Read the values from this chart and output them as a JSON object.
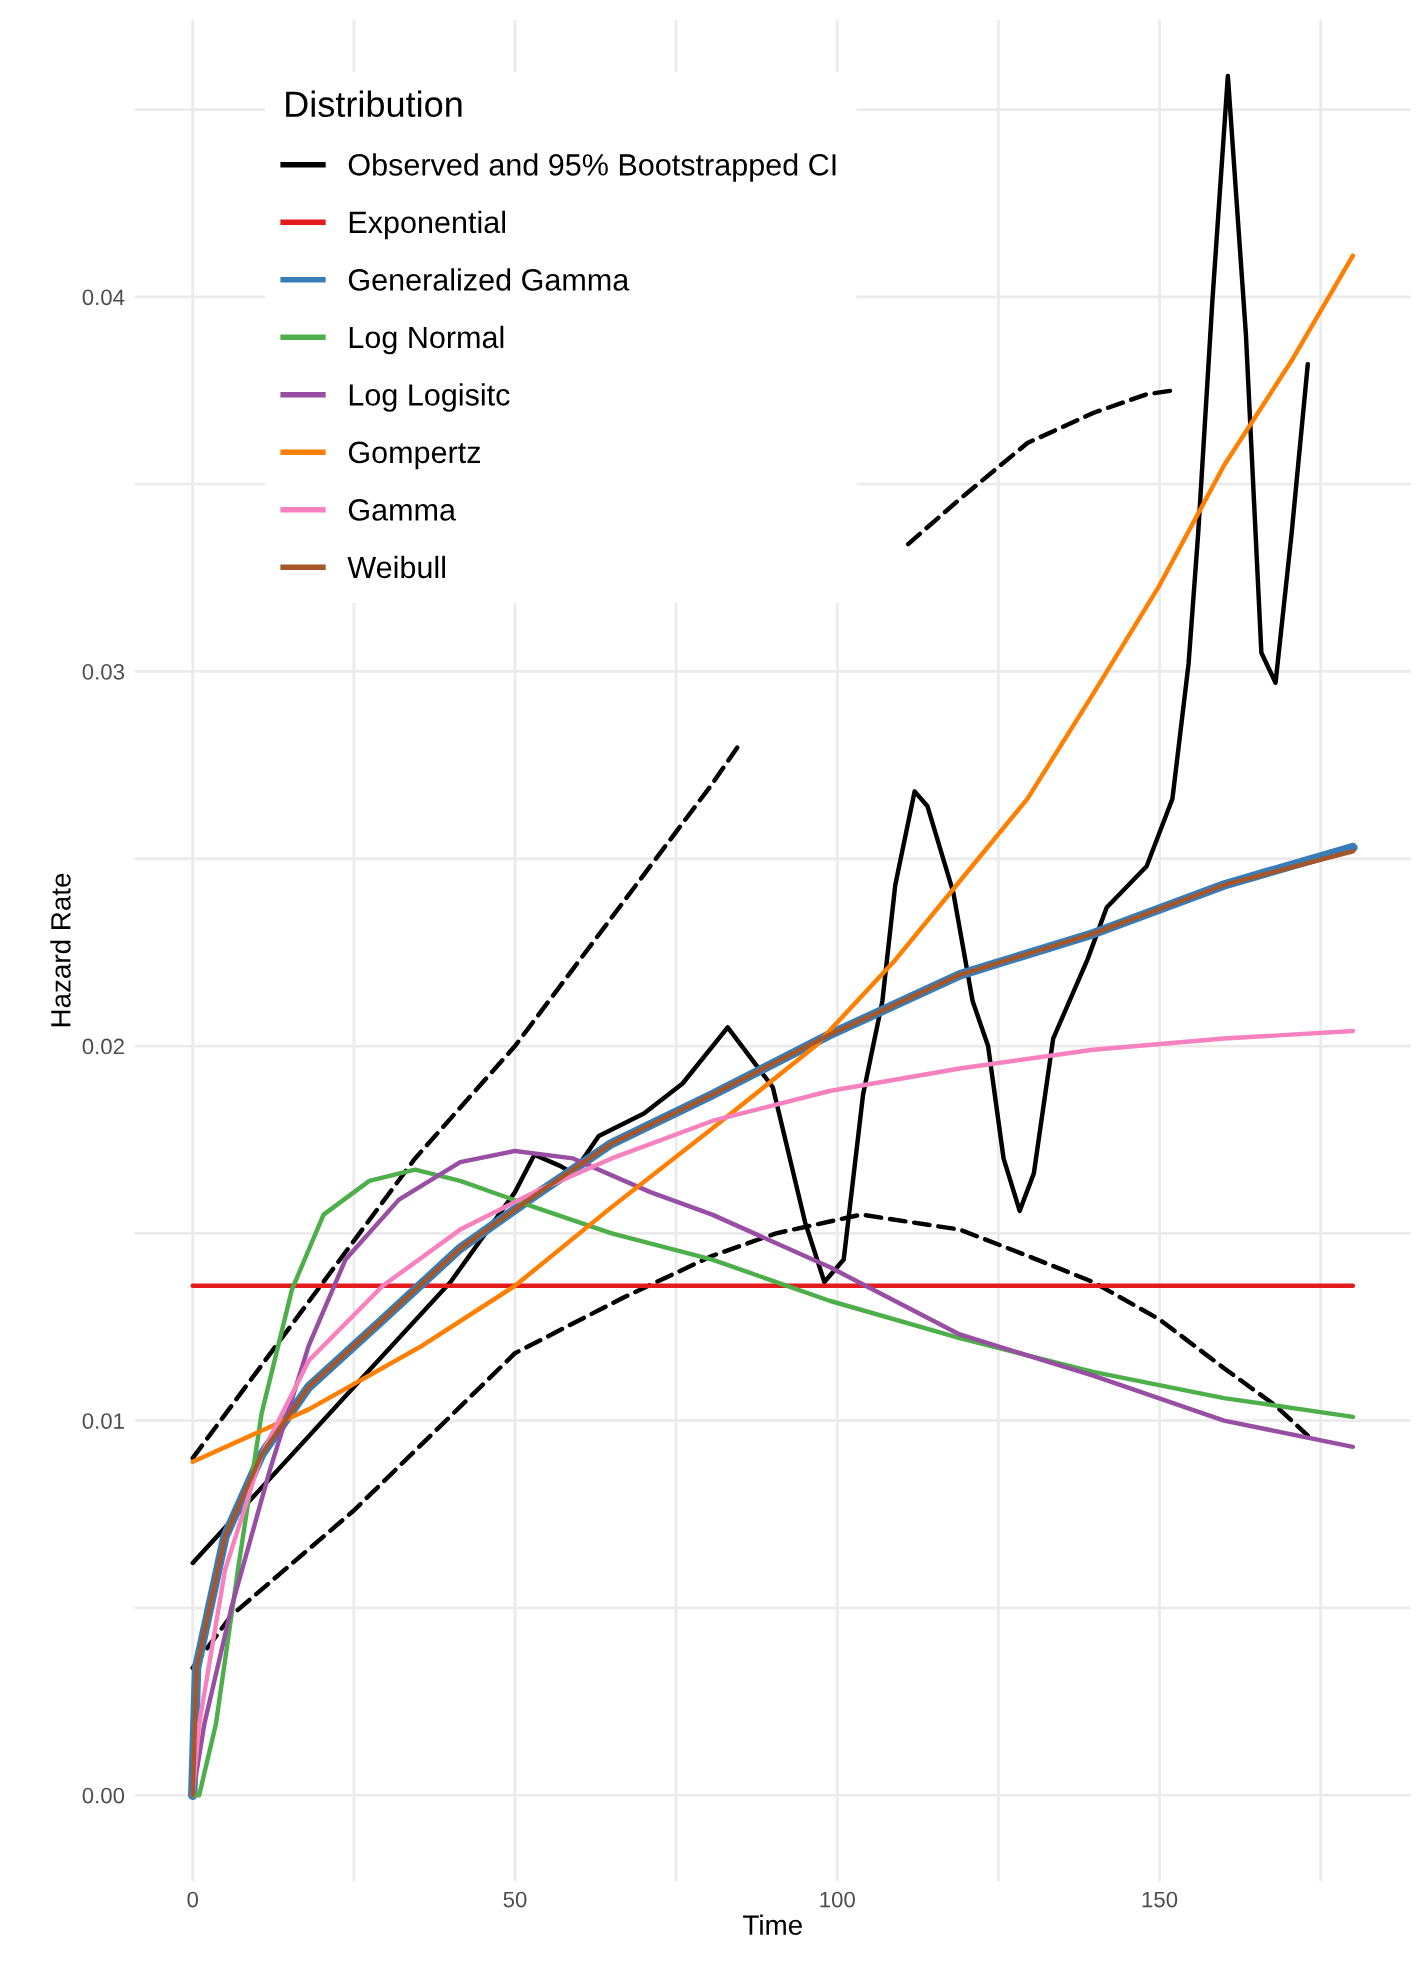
{
  "chart_data": {
    "type": "line",
    "xlabel": "Time",
    "ylabel": "Hazard Rate",
    "legend_title": "Distribution",
    "legend": "top left",
    "grid": true,
    "xlim": [
      -9,
      189
    ],
    "xticks": [
      0,
      {
        "value": 25,
        "label": null
      },
      50,
      {
        "value": 75,
        "label": null
      },
      100,
      {
        "value": 125,
        "label": null
      },
      150,
      {
        "value": 175,
        "label": null
      }
    ],
    "ylim": [
      -0.0023,
      0.0474
    ],
    "yticks": [
      {
        "value": 0,
        "label": "0.00"
      },
      {
        "value": 0.005,
        "label": null
      },
      {
        "value": 0.01,
        "label": "0.01"
      },
      {
        "value": 0.015,
        "label": null
      },
      {
        "value": 0.02,
        "label": "0.02"
      },
      {
        "value": 0.025,
        "label": null
      },
      {
        "value": 0.03,
        "label": "0.03"
      },
      {
        "value": 0.035,
        "label": null
      },
      {
        "value": 0.04,
        "label": "0.04"
      },
      {
        "value": 0.045,
        "label": null
      }
    ],
    "series": [
      {
        "name": "Observed and 95% Bootstrapped CI",
        "color": "#000000",
        "line_style": "solid",
        "x": [
          0,
          25,
          40,
          50,
          53,
          57,
          59,
          63,
          70,
          76,
          83,
          90,
          95,
          98,
          101,
          104,
          107,
          109,
          112,
          114,
          118,
          121,
          123.4,
          125.8,
          128.3,
          130.5,
          133.5,
          138.8,
          141.8,
          148,
          152,
          154.5,
          156,
          158.2,
          160.6,
          163.4,
          165.8,
          168,
          170.5,
          173
        ],
        "values": [
          0.0062,
          0.0109,
          0.0137,
          0.0161,
          0.0171,
          0.0168,
          0.0166,
          0.0176,
          0.0182,
          0.019,
          0.0205,
          0.0189,
          0.0153,
          0.0137,
          0.0143,
          0.0187,
          0.0212,
          0.0243,
          0.0268,
          0.0264,
          0.0241,
          0.0212,
          0.02,
          0.017,
          0.0156,
          0.0166,
          0.0202,
          0.0223,
          0.0237,
          0.0248,
          0.0266,
          0.0302,
          0.0337,
          0.0399,
          0.0459,
          0.039,
          0.0305,
          0.0297,
          0.0337,
          0.0382
        ]
      },
      {
        "color": "#000000",
        "line_style": "dashed",
        "x": [
          0,
          34.5,
          50,
          80.6,
          85,
          95,
          111,
          119,
          129.5,
          139.7,
          148,
          152
        ],
        "values": [
          0.009,
          0.017,
          0.02,
          0.027,
          0.0281,
          null,
          0.0334,
          0.0346,
          0.0361,
          0.0369,
          0.0374,
          0.0375
        ]
      },
      {
        "color": "#000000",
        "line_style": "dashed",
        "x": [
          0,
          6,
          25,
          50,
          67,
          80.6,
          90.5,
          103.7,
          119,
          129.5,
          139.7,
          150,
          160,
          168,
          173
        ],
        "values": [
          0.0034,
          0.0048,
          0.0076,
          0.0118,
          0.0133,
          0.0144,
          0.015,
          0.0155,
          0.0151,
          0.0144,
          0.0137,
          0.0127,
          0.0114,
          0.0104,
          0.0096
        ]
      },
      {
        "name": "Exponential",
        "color": "#e41a1c",
        "line_style": "solid",
        "x": [
          0,
          180
        ],
        "values": [
          0.0136,
          0.0136
        ]
      },
      {
        "name": "Generalized Gamma",
        "color": "#377eb8",
        "line_style": "solid",
        "x": [
          0,
          0.6,
          5,
          10.7,
          18,
          29.5,
          41.5,
          53,
          65,
          80.6,
          98.8,
          119,
          139.7,
          160,
          180
        ],
        "values": [
          0,
          0.0034,
          0.0069,
          0.0091,
          0.0109,
          0.0127,
          0.0146,
          0.016,
          0.0174,
          0.0187,
          0.0203,
          0.0219,
          0.023,
          0.0243,
          0.0253
        ]
      },
      {
        "name": "Log Normal",
        "color": "#4daf4a",
        "line_style": "solid",
        "x": [
          0,
          1,
          3.6,
          7,
          10.7,
          15.4,
          20.3,
          27.4,
          34.5,
          41.5,
          53,
          65,
          80.6,
          98.8,
          119,
          139.7,
          160,
          180
        ],
        "values": [
          0,
          0,
          0.0019,
          0.006,
          0.0102,
          0.0135,
          0.0155,
          0.0164,
          0.0167,
          0.0164,
          0.0157,
          0.015,
          0.0143,
          0.0132,
          0.0122,
          0.0113,
          0.0106,
          0.0101
        ]
      },
      {
        "name": "Log Logisitc",
        "color": "#984ea3",
        "line_style": "solid",
        "x": [
          0,
          1.8,
          6,
          12,
          18,
          23.7,
          32,
          41.5,
          50,
          59,
          71,
          80.6,
          98.8,
          119,
          139.7,
          160,
          180
        ],
        "values": [
          0,
          0.0019,
          0.005,
          0.0087,
          0.012,
          0.0143,
          0.0159,
          0.0169,
          0.0172,
          0.017,
          0.0161,
          0.0155,
          0.0141,
          0.0123,
          0.0112,
          0.01,
          0.0093
        ]
      },
      {
        "name": "Gompertz",
        "color": "#ff7f00",
        "line_style": "solid",
        "x": [
          0,
          18,
          35.6,
          50,
          65,
          80.6,
          96.6,
          109,
          119,
          129.5,
          139.7,
          150,
          160,
          170.5,
          180
        ],
        "values": [
          0.0089,
          0.0103,
          0.012,
          0.0136,
          0.0157,
          0.0178,
          0.02,
          0.0223,
          0.0244,
          0.0266,
          0.0294,
          0.0323,
          0.0355,
          0.0383,
          0.0411
        ]
      },
      {
        "name": "Gamma",
        "color": "#f781bf",
        "line_style": "solid",
        "x": [
          0,
          1,
          5,
          10.7,
          18,
          29.5,
          41.5,
          53,
          65,
          80.6,
          98.8,
          119,
          139.7,
          160,
          180
        ],
        "values": [
          0,
          0.0019,
          0.006,
          0.0091,
          0.0116,
          0.0136,
          0.0151,
          0.0161,
          0.017,
          0.018,
          0.0188,
          0.0194,
          0.0199,
          0.0202,
          0.0204
        ]
      },
      {
        "name": "Weibull",
        "color": "#a65628",
        "line_style": "solid",
        "x": [
          0,
          0.6,
          5,
          10.7,
          18,
          29.5,
          41.5,
          53,
          65,
          80.6,
          98.8,
          119,
          139.7,
          160,
          180
        ],
        "values": [
          0,
          0.0034,
          0.0069,
          0.0091,
          0.0109,
          0.0127,
          0.0146,
          0.016,
          0.0174,
          0.0187,
          0.0203,
          0.0219,
          0.023,
          0.0243,
          0.0252
        ]
      }
    ]
  }
}
